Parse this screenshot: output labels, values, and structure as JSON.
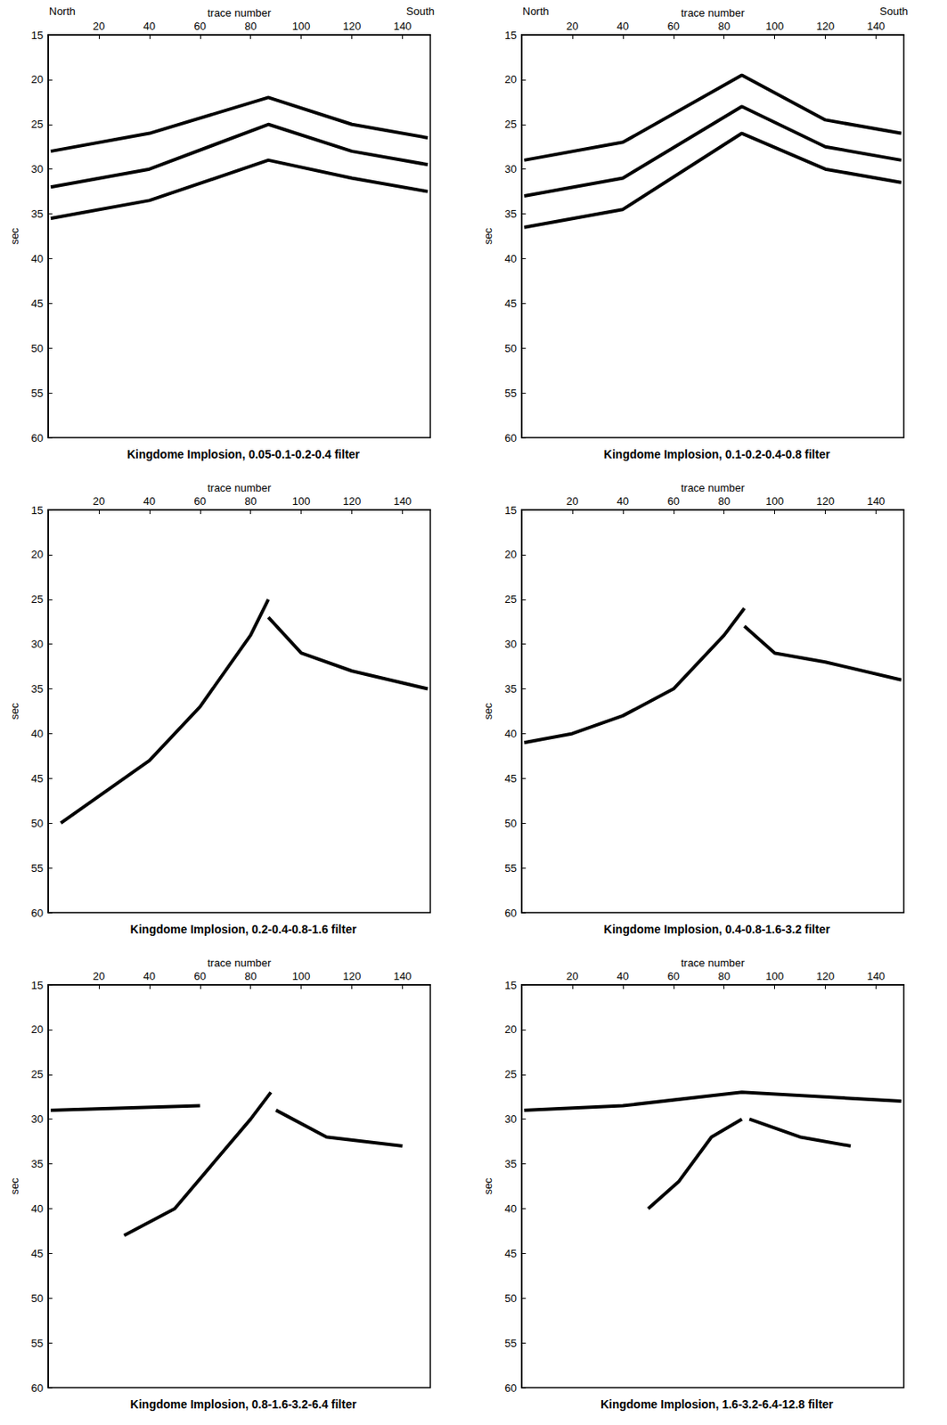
{
  "chart_data": [
    {
      "type": "line",
      "title": "Kingdome Implosion, 0.05-0.1-0.2-0.4 filter",
      "x_label": "trace number",
      "y_label": "sec",
      "annotations": [
        "North",
        "South"
      ],
      "xlim": [
        0,
        151
      ],
      "xticks": [
        20,
        40,
        60,
        80,
        100,
        120,
        140
      ],
      "ylim": [
        15,
        60
      ],
      "yticks": [
        15,
        20,
        25,
        30,
        35,
        40,
        45,
        50,
        55,
        60
      ],
      "grid": false,
      "color": "#000000",
      "series": [
        {
          "values": [
            [
              1,
              28
            ],
            [
              40,
              26
            ],
            [
              87,
              22
            ],
            [
              120,
              25
            ],
            [
              150,
              26.5
            ]
          ]
        },
        {
          "values": [
            [
              1,
              32
            ],
            [
              40,
              30
            ],
            [
              87,
              25
            ],
            [
              120,
              28
            ],
            [
              150,
              29.5
            ]
          ]
        },
        {
          "values": [
            [
              1,
              35.5
            ],
            [
              40,
              33.5
            ],
            [
              87,
              29
            ],
            [
              120,
              31
            ],
            [
              150,
              32.5
            ]
          ]
        }
      ]
    },
    {
      "type": "line",
      "title": "Kingdome Implosion, 0.1-0.2-0.4-0.8 filter",
      "x_label": "trace number",
      "y_label": "sec",
      "annotations": [
        "North",
        "South"
      ],
      "xlim": [
        0,
        151
      ],
      "xticks": [
        20,
        40,
        60,
        80,
        100,
        120,
        140
      ],
      "ylim": [
        15,
        60
      ],
      "yticks": [
        15,
        20,
        25,
        30,
        35,
        40,
        45,
        50,
        55,
        60
      ],
      "grid": false,
      "color": "#000000",
      "series": [
        {
          "values": [
            [
              1,
              29
            ],
            [
              40,
              27
            ],
            [
              87,
              19.5
            ],
            [
              120,
              24.5
            ],
            [
              150,
              26
            ]
          ]
        },
        {
          "values": [
            [
              1,
              33
            ],
            [
              40,
              31
            ],
            [
              87,
              23
            ],
            [
              120,
              27.5
            ],
            [
              150,
              29
            ]
          ]
        },
        {
          "values": [
            [
              1,
              36.5
            ],
            [
              40,
              34.5
            ],
            [
              87,
              26
            ],
            [
              120,
              30
            ],
            [
              150,
              31.5
            ]
          ]
        }
      ]
    },
    {
      "type": "line",
      "title": "Kingdome Implosion, 0.2-0.4-0.8-1.6 filter",
      "x_label": "trace number",
      "y_label": "sec",
      "xlim": [
        0,
        151
      ],
      "xticks": [
        20,
        40,
        60,
        80,
        100,
        120,
        140
      ],
      "ylim": [
        15,
        60
      ],
      "yticks": [
        15,
        20,
        25,
        30,
        35,
        40,
        45,
        50,
        55,
        60
      ],
      "grid": false,
      "color": "#000000",
      "series": [
        {
          "values": [
            [
              87,
              25
            ],
            [
              80,
              29
            ],
            [
              60,
              37
            ],
            [
              40,
              43
            ],
            [
              20,
              47
            ],
            [
              5,
              50
            ]
          ]
        },
        {
          "values": [
            [
              87,
              27
            ],
            [
              100,
              31
            ],
            [
              120,
              33
            ],
            [
              150,
              35
            ]
          ]
        }
      ]
    },
    {
      "type": "line",
      "title": "Kingdome Implosion, 0.4-0.8-1.6-3.2 filter",
      "x_label": "trace number",
      "y_label": "sec",
      "xlim": [
        0,
        151
      ],
      "xticks": [
        20,
        40,
        60,
        80,
        100,
        120,
        140
      ],
      "ylim": [
        15,
        60
      ],
      "yticks": [
        15,
        20,
        25,
        30,
        35,
        40,
        45,
        50,
        55,
        60
      ],
      "grid": false,
      "color": "#000000",
      "series": [
        {
          "values": [
            [
              88,
              26
            ],
            [
              80,
              29
            ],
            [
              60,
              35
            ],
            [
              40,
              38
            ],
            [
              20,
              40
            ],
            [
              1,
              41
            ]
          ]
        },
        {
          "values": [
            [
              88,
              28
            ],
            [
              100,
              31
            ],
            [
              120,
              32
            ],
            [
              150,
              34
            ]
          ]
        }
      ]
    },
    {
      "type": "line",
      "title": "Kingdome Implosion, 0.8-1.6-3.2-6.4 filter",
      "x_label": "trace number",
      "y_label": "sec",
      "xlim": [
        0,
        151
      ],
      "xticks": [
        20,
        40,
        60,
        80,
        100,
        120,
        140
      ],
      "ylim": [
        15,
        60
      ],
      "yticks": [
        15,
        20,
        25,
        30,
        35,
        40,
        45,
        50,
        55,
        60
      ],
      "grid": false,
      "color": "#000000",
      "series": [
        {
          "values": [
            [
              1,
              29
            ],
            [
              60,
              28.5
            ]
          ]
        },
        {
          "values": [
            [
              88,
              27
            ],
            [
              80,
              30
            ],
            [
              65,
              35
            ],
            [
              50,
              40
            ],
            [
              30,
              43
            ]
          ]
        },
        {
          "values": [
            [
              90,
              29
            ],
            [
              110,
              32
            ],
            [
              140,
              33
            ]
          ]
        }
      ]
    },
    {
      "type": "line",
      "title": "Kingdome Implosion, 1.6-3.2-6.4-12.8 filter",
      "x_label": "trace number",
      "y_label": "sec",
      "xlim": [
        0,
        151
      ],
      "xticks": [
        20,
        40,
        60,
        80,
        100,
        120,
        140
      ],
      "ylim": [
        15,
        60
      ],
      "yticks": [
        15,
        20,
        25,
        30,
        35,
        40,
        45,
        50,
        55,
        60
      ],
      "grid": false,
      "color": "#000000",
      "series": [
        {
          "values": [
            [
              1,
              29
            ],
            [
              40,
              28.5
            ],
            [
              87,
              27
            ],
            [
              150,
              28
            ]
          ]
        },
        {
          "values": [
            [
              87,
              30
            ],
            [
              75,
              32
            ],
            [
              62,
              37
            ],
            [
              50,
              40
            ]
          ]
        },
        {
          "values": [
            [
              90,
              30
            ],
            [
              110,
              32
            ],
            [
              130,
              33
            ]
          ]
        }
      ]
    }
  ]
}
